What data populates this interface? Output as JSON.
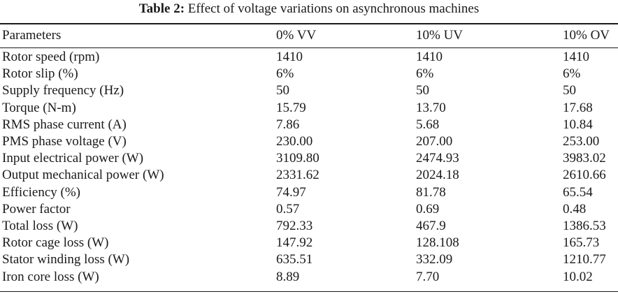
{
  "caption": {
    "label": "Table 2:",
    "title": "Effect of voltage variations on asynchronous machines"
  },
  "table": {
    "headers": [
      "Parameters",
      "0% VV",
      "10% UV",
      "10% OV"
    ],
    "rows": [
      [
        "Rotor speed (rpm)",
        "1410",
        "1410",
        "1410"
      ],
      [
        "Rotor slip (%)",
        "6%",
        "6%",
        "6%"
      ],
      [
        "Supply frequency (Hz)",
        "50",
        "50",
        "50"
      ],
      [
        "Torque (N-m)",
        "15.79",
        "13.70",
        "17.68"
      ],
      [
        "RMS phase current (A)",
        "7.86",
        "5.68",
        "10.84"
      ],
      [
        "PMS phase voltage (V)",
        "230.00",
        "207.00",
        "253.00"
      ],
      [
        "Input electrical power (W)",
        "3109.80",
        "2474.93",
        "3983.02"
      ],
      [
        "Output mechanical power (W)",
        "2331.62",
        "2024.18",
        "2610.66"
      ],
      [
        "Efficiency (%)",
        "74.97",
        "81.78",
        "65.54"
      ],
      [
        "Power factor",
        "0.57",
        "0.69",
        "0.48"
      ],
      [
        "Total loss (W)",
        "792.33",
        "467.9",
        "1386.53"
      ],
      [
        "Rotor cage loss (W)",
        "147.92",
        "128.108",
        "165.73"
      ],
      [
        "Stator winding loss (W)",
        "635.51",
        "332.09",
        "1210.77"
      ],
      [
        "Iron core loss (W)",
        "8.89",
        "7.70",
        "10.02"
      ]
    ]
  }
}
